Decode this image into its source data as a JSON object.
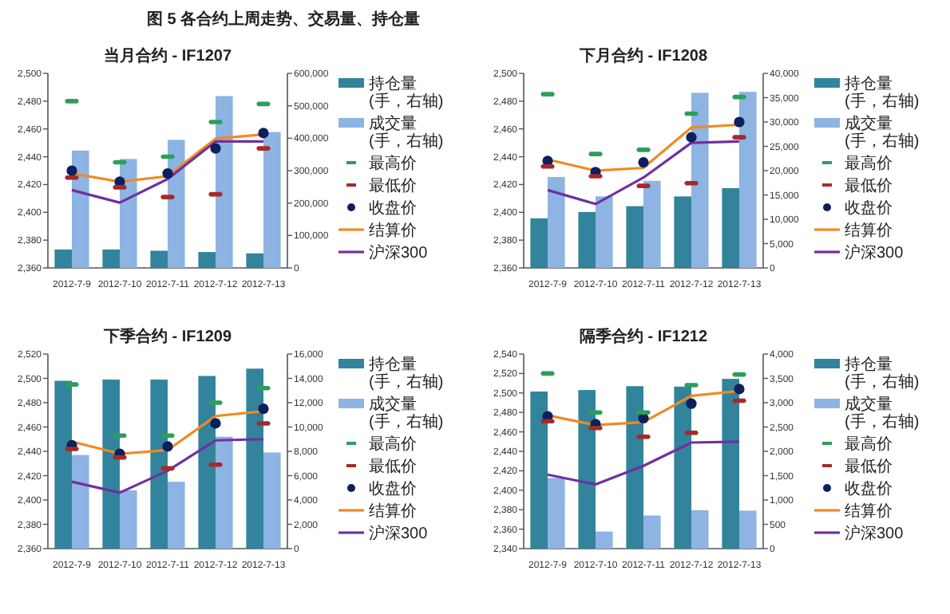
{
  "chart_data": [
    {
      "type": "bar",
      "title": "当月合约 - IF1207",
      "annotations": [
        "图 5 各合约上周走势、交易量、持仓量"
      ],
      "legend": "right",
      "categories": [
        "2012-7-9",
        "2012-7-10",
        "2012-7-11",
        "2012-7-12",
        "2012-7-13"
      ],
      "ylim": [
        2360,
        2500
      ],
      "yticks": [
        {
          "value": 2360,
          "label": "2,360"
        },
        {
          "value": 2380,
          "label": "2,380"
        },
        {
          "value": 2400,
          "label": "2,400"
        },
        {
          "value": 2420,
          "label": "2,420"
        },
        {
          "value": 2440,
          "label": "2,440"
        },
        {
          "value": 2460,
          "label": "2,460"
        },
        {
          "value": 2480,
          "label": "2,480"
        },
        {
          "value": 2500,
          "label": "2,500"
        }
      ],
      "y2lim": [
        0,
        600000
      ],
      "y2ticks": [
        {
          "value": 0,
          "label": "0"
        },
        {
          "value": 100000,
          "label": "100,000"
        },
        {
          "value": 200000,
          "label": "200,000"
        },
        {
          "value": 300000,
          "label": "300,000"
        },
        {
          "value": 400000,
          "label": "400,000"
        },
        {
          "value": 500000,
          "label": "500,000"
        },
        {
          "value": 600000,
          "label": "600,000"
        }
      ],
      "series": [
        {
          "name": "持仓量\n(手，右轴)",
          "type": "bar",
          "axis": "y2",
          "color": "#31849b",
          "values": [
            57000,
            57000,
            53000,
            49000,
            45000
          ]
        },
        {
          "name": "成交量\n(手，右轴)",
          "type": "bar",
          "axis": "y2",
          "color": "#8db4e2",
          "values": [
            362000,
            336000,
            395000,
            530000,
            419000
          ]
        },
        {
          "name": "最高价",
          "type": "scatter",
          "color": "#2e9e5b",
          "values": [
            2480,
            2436,
            2440,
            2465,
            2478
          ]
        },
        {
          "name": "最低价",
          "type": "scatter",
          "color": "#a52a2a",
          "values": [
            2425,
            2418,
            2411,
            2413,
            2446
          ]
        },
        {
          "name": "收盘价",
          "type": "scatter",
          "marker": "circle",
          "color": "#0d1f5c",
          "values": [
            2430,
            2422,
            2428,
            2446,
            2457
          ]
        },
        {
          "name": "结算价",
          "type": "line",
          "color": "#f08a24",
          "values": [
            2428,
            2422,
            2426,
            2453,
            2456
          ]
        },
        {
          "name": "沪深300",
          "type": "line",
          "color": "#7030a0",
          "values": [
            2416,
            2407,
            2424,
            2451,
            2451
          ]
        }
      ]
    },
    {
      "type": "bar",
      "title": "下月合约 - IF1208",
      "legend": "right",
      "categories": [
        "2012-7-9",
        "2012-7-10",
        "2012-7-11",
        "2012-7-12",
        "2012-7-13"
      ],
      "ylim": [
        2360,
        2500
      ],
      "yticks": [
        {
          "value": 2360,
          "label": "2,360"
        },
        {
          "value": 2380,
          "label": "2,380"
        },
        {
          "value": 2400,
          "label": "2,400"
        },
        {
          "value": 2420,
          "label": "2,420"
        },
        {
          "value": 2440,
          "label": "2,440"
        },
        {
          "value": 2460,
          "label": "2,460"
        },
        {
          "value": 2480,
          "label": "2,480"
        },
        {
          "value": 2500,
          "label": "2,500"
        }
      ],
      "y2lim": [
        0,
        40000
      ],
      "y2ticks": [
        {
          "value": 0,
          "label": "0"
        },
        {
          "value": 5000,
          "label": "5,000"
        },
        {
          "value": 10000,
          "label": "10,000"
        },
        {
          "value": 15000,
          "label": "15,000"
        },
        {
          "value": 20000,
          "label": "20,000"
        },
        {
          "value": 25000,
          "label": "25,000"
        },
        {
          "value": 30000,
          "label": "30,000"
        },
        {
          "value": 35000,
          "label": "35,000"
        },
        {
          "value": 40000,
          "label": "40,000"
        }
      ],
      "series": [
        {
          "name": "持仓量\n(手，右轴)",
          "type": "bar",
          "axis": "y2",
          "color": "#31849b",
          "values": [
            10200,
            11500,
            12700,
            14700,
            16400
          ]
        },
        {
          "name": "成交量\n(手，右轴)",
          "type": "bar",
          "axis": "y2",
          "color": "#8db4e2",
          "values": [
            18700,
            14700,
            17900,
            36000,
            36200
          ]
        },
        {
          "name": "最高价",
          "type": "scatter",
          "color": "#2e9e5b",
          "values": [
            2485,
            2442,
            2445,
            2471,
            2483
          ]
        },
        {
          "name": "最低价",
          "type": "scatter",
          "color": "#a52a2a",
          "values": [
            2433,
            2426,
            2419,
            2421,
            2454
          ]
        },
        {
          "name": "收盘价",
          "type": "scatter",
          "marker": "circle",
          "color": "#0d1f5c",
          "values": [
            2437,
            2429,
            2436,
            2454,
            2465
          ]
        },
        {
          "name": "结算价",
          "type": "line",
          "color": "#f08a24",
          "values": [
            2438,
            2430,
            2432,
            2461,
            2463
          ]
        },
        {
          "name": "沪深300",
          "type": "line",
          "color": "#7030a0",
          "values": [
            2416,
            2406,
            2425,
            2450,
            2451
          ]
        }
      ]
    },
    {
      "type": "bar",
      "title": "下季合约 - IF1209",
      "legend": "right",
      "categories": [
        "2012-7-9",
        "2012-7-10",
        "2012-7-11",
        "2012-7-12",
        "2012-7-13"
      ],
      "ylim": [
        2360,
        2520
      ],
      "yticks": [
        {
          "value": 2360,
          "label": "2,360"
        },
        {
          "value": 2380,
          "label": "2,380"
        },
        {
          "value": 2400,
          "label": "2,400"
        },
        {
          "value": 2420,
          "label": "2,420"
        },
        {
          "value": 2440,
          "label": "2,440"
        },
        {
          "value": 2460,
          "label": "2,460"
        },
        {
          "value": 2480,
          "label": "2,480"
        },
        {
          "value": 2500,
          "label": "2,500"
        },
        {
          "value": 2520,
          "label": "2,520"
        }
      ],
      "y2lim": [
        0,
        16000
      ],
      "y2ticks": [
        {
          "value": 0,
          "label": "0"
        },
        {
          "value": 2000,
          "label": "2,000"
        },
        {
          "value": 4000,
          "label": "4,000"
        },
        {
          "value": 6000,
          "label": "6,000"
        },
        {
          "value": 8000,
          "label": "8,000"
        },
        {
          "value": 10000,
          "label": "10,000"
        },
        {
          "value": 12000,
          "label": "12,000"
        },
        {
          "value": 14000,
          "label": "14,000"
        },
        {
          "value": 16000,
          "label": "16,000"
        }
      ],
      "series": [
        {
          "name": "持仓量\n(手，右轴)",
          "type": "bar",
          "axis": "y2",
          "color": "#31849b",
          "values": [
            13800,
            13900,
            13900,
            14200,
            14800
          ]
        },
        {
          "name": "成交量\n(手，右轴)",
          "type": "bar",
          "axis": "y2",
          "color": "#8db4e2",
          "values": [
            7700,
            4800,
            5500,
            9200,
            7900
          ]
        },
        {
          "name": "最高价",
          "type": "scatter",
          "color": "#2e9e5b",
          "values": [
            2495,
            2453,
            2453,
            2480,
            2492
          ]
        },
        {
          "name": "最低价",
          "type": "scatter",
          "color": "#a52a2a",
          "values": [
            2442,
            2435,
            2426,
            2429,
            2463
          ]
        },
        {
          "name": "收盘价",
          "type": "scatter",
          "marker": "circle",
          "color": "#0d1f5c",
          "values": [
            2445,
            2438,
            2444,
            2463,
            2475
          ]
        },
        {
          "name": "结算价",
          "type": "line",
          "color": "#f08a24",
          "values": [
            2448,
            2438,
            2441,
            2469,
            2473
          ]
        },
        {
          "name": "沪深300",
          "type": "line",
          "color": "#7030a0",
          "values": [
            2415,
            2406,
            2424,
            2449,
            2450
          ]
        }
      ]
    },
    {
      "type": "bar",
      "title": "隔季合约 - IF1212",
      "legend": "right",
      "categories": [
        "2012-7-9",
        "2012-7-10",
        "2012-7-11",
        "2012-7-12",
        "2012-7-13"
      ],
      "ylim": [
        2340,
        2540
      ],
      "yticks": [
        {
          "value": 2340,
          "label": "2,340"
        },
        {
          "value": 2360,
          "label": "2,360"
        },
        {
          "value": 2380,
          "label": "2,380"
        },
        {
          "value": 2400,
          "label": "2,400"
        },
        {
          "value": 2420,
          "label": "2,420"
        },
        {
          "value": 2440,
          "label": "2,440"
        },
        {
          "value": 2460,
          "label": "2,460"
        },
        {
          "value": 2480,
          "label": "2,480"
        },
        {
          "value": 2500,
          "label": "2,500"
        },
        {
          "value": 2520,
          "label": "2,520"
        },
        {
          "value": 2540,
          "label": "2,540"
        }
      ],
      "y2lim": [
        0,
        4000
      ],
      "y2ticks": [
        {
          "value": 0,
          "label": "0"
        },
        {
          "value": 500,
          "label": "500"
        },
        {
          "value": 1000,
          "label": "1,000"
        },
        {
          "value": 1500,
          "label": "1,500"
        },
        {
          "value": 2000,
          "label": "2,000"
        },
        {
          "value": 2500,
          "label": "2,500"
        },
        {
          "value": 3000,
          "label": "3,000"
        },
        {
          "value": 3500,
          "label": "3,500"
        },
        {
          "value": 4000,
          "label": "4,000"
        }
      ],
      "series": [
        {
          "name": "持仓量\n(手，右轴)",
          "type": "bar",
          "axis": "y2",
          "color": "#31849b",
          "values": [
            3230,
            3260,
            3340,
            3330,
            3490
          ]
        },
        {
          "name": "成交量\n(手，右轴)",
          "type": "bar",
          "axis": "y2",
          "color": "#8db4e2",
          "values": [
            1450,
            350,
            680,
            790,
            780
          ]
        },
        {
          "name": "最高价",
          "type": "scatter",
          "color": "#2e9e5b",
          "values": [
            2520,
            2480,
            2480,
            2508,
            2519
          ]
        },
        {
          "name": "最低价",
          "type": "scatter",
          "color": "#a52a2a",
          "values": [
            2471,
            2464,
            2455,
            2459,
            2492
          ]
        },
        {
          "name": "收盘价",
          "type": "scatter",
          "marker": "circle",
          "color": "#0d1f5c",
          "values": [
            2476,
            2468,
            2474,
            2489,
            2504
          ]
        },
        {
          "name": "结算价",
          "type": "line",
          "color": "#f08a24",
          "values": [
            2477,
            2467,
            2470,
            2497,
            2502
          ]
        },
        {
          "name": "沪深300",
          "type": "line",
          "color": "#7030a0",
          "values": [
            2416,
            2406,
            2425,
            2449,
            2450
          ]
        }
      ]
    }
  ]
}
